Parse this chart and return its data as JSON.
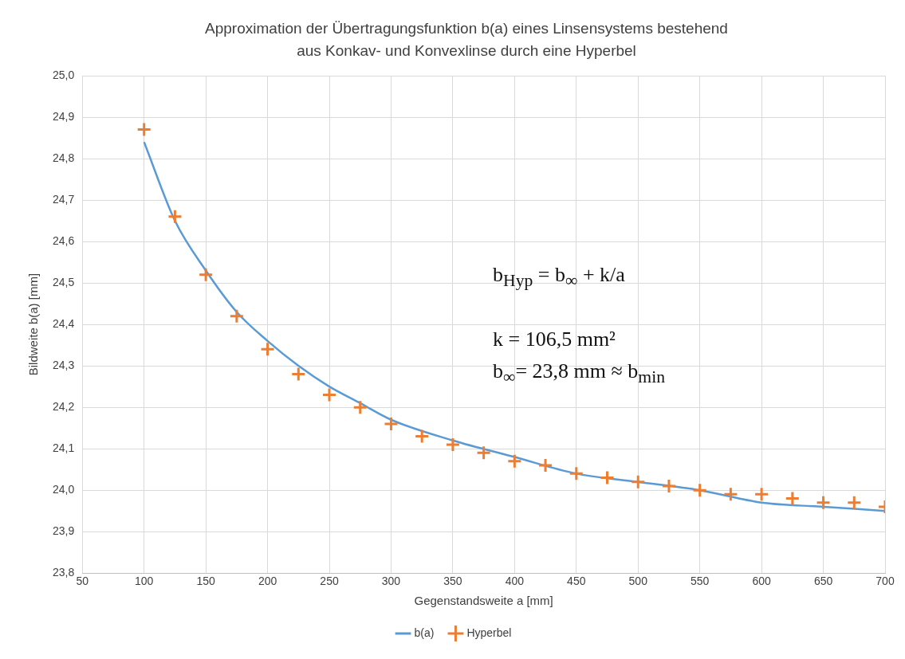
{
  "chart_data": {
    "type": "scatter",
    "title": "Approximation der Übertragungsfunktion b(a) eines Linsensystems bestehend aus Konkav- und Konvexlinse durch eine Hyperbel",
    "xlabel": "Gegenstandsweite a [mm]",
    "ylabel": "Bildweite b(a) [mm]",
    "xlim": [
      50,
      700
    ],
    "xticks": [
      50,
      100,
      150,
      200,
      250,
      300,
      350,
      400,
      450,
      500,
      550,
      600,
      650,
      700
    ],
    "ylim": [
      23.8,
      25.0
    ],
    "yticks": [
      {
        "value": 23.8,
        "label": "23,8"
      },
      {
        "value": 23.9,
        "label": "23,9"
      },
      {
        "value": 24.0,
        "label": "24,0"
      },
      {
        "value": 24.1,
        "label": "24,1"
      },
      {
        "value": 24.2,
        "label": "24,2"
      },
      {
        "value": 24.3,
        "label": "24,3"
      },
      {
        "value": 24.4,
        "label": "24,4"
      },
      {
        "value": 24.5,
        "label": "24,5"
      },
      {
        "value": 24.6,
        "label": "24,6"
      },
      {
        "value": 24.7,
        "label": "24,7"
      },
      {
        "value": 24.8,
        "label": "24,8"
      },
      {
        "value": 24.9,
        "label": "24,9"
      },
      {
        "value": 25.0,
        "label": "25,0"
      }
    ],
    "grid": true,
    "legend": "bottom",
    "series": [
      {
        "name": "b(a)",
        "type": "line",
        "marker": "none",
        "color": "#5b9bd5",
        "x": [
          100,
          125,
          150,
          175,
          200,
          225,
          250,
          275,
          300,
          350,
          400,
          450,
          500,
          550,
          600,
          650,
          700
        ],
        "values": [
          24.84,
          24.65,
          24.53,
          24.43,
          24.36,
          24.3,
          24.25,
          24.21,
          24.17,
          24.12,
          24.08,
          24.04,
          24.02,
          24.0,
          23.97,
          23.96,
          23.95
        ]
      },
      {
        "name": "Hyperbel",
        "marker": "cross",
        "color": "#ed7d31",
        "x": [
          100,
          125,
          150,
          175,
          200,
          225,
          250,
          275,
          300,
          325,
          350,
          375,
          400,
          425,
          450,
          475,
          500,
          525,
          550,
          575,
          600,
          625,
          650,
          675,
          700
        ],
        "values": [
          24.87,
          24.66,
          24.52,
          24.42,
          24.34,
          24.28,
          24.23,
          24.2,
          24.16,
          24.13,
          24.11,
          24.09,
          24.07,
          24.06,
          24.04,
          24.03,
          24.02,
          24.01,
          24.0,
          23.99,
          23.99,
          23.98,
          23.97,
          23.97,
          23.96
        ]
      }
    ],
    "annotations": [
      "b$_{Hyp}$ = b$_{∞}$ + k/a",
      "k   = 106,5 mm²",
      "b$_{∞}$= 23,8 mm  ≈ b$_{min}$"
    ]
  }
}
